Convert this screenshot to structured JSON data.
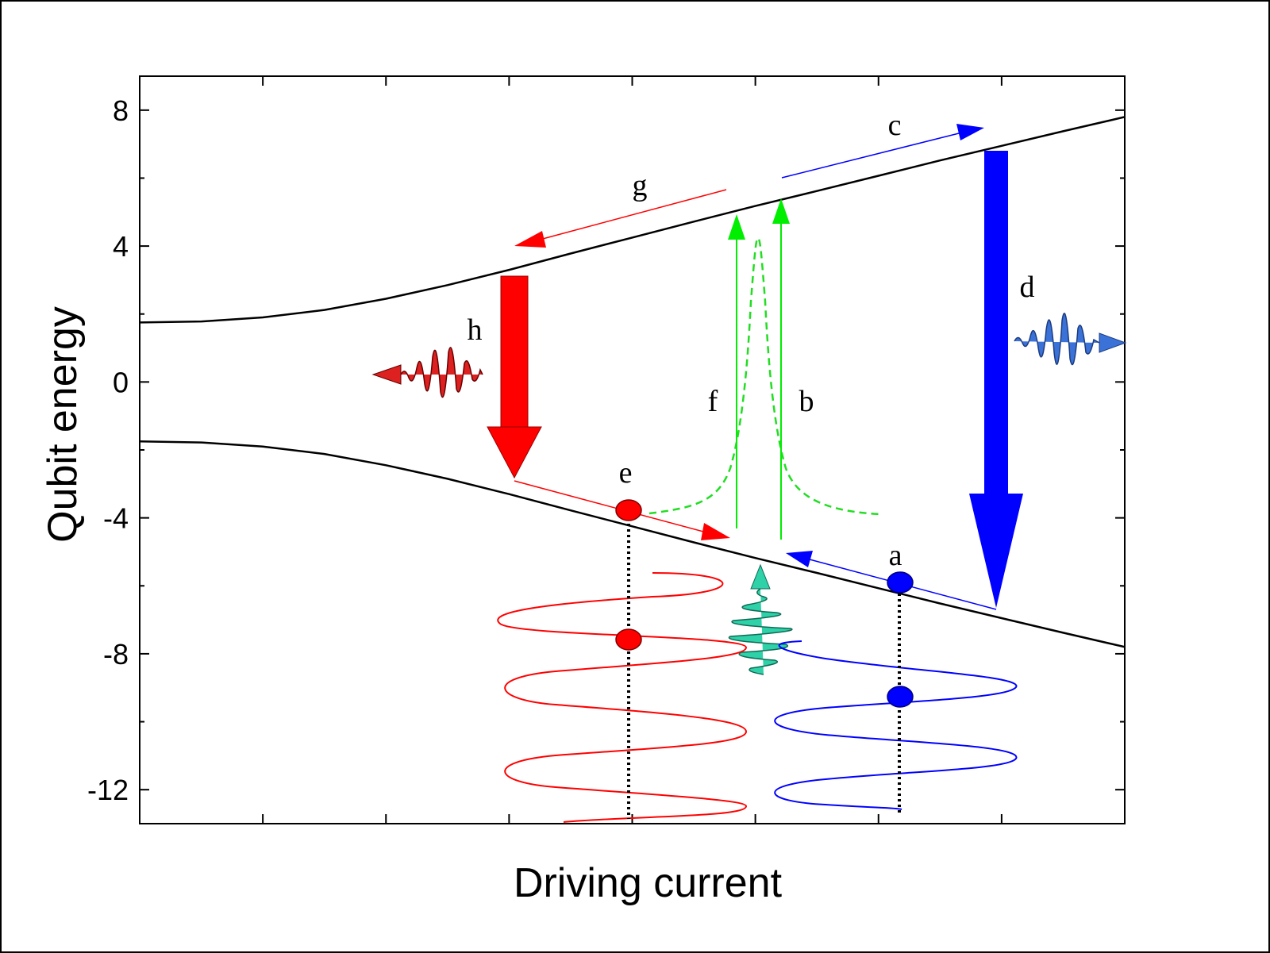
{
  "chart_data": {
    "type": "line",
    "title": "",
    "xlabel": "Driving current",
    "ylabel": "Qubit energy",
    "xlim": [
      -5,
      3
    ],
    "ylim": [
      -13,
      9
    ],
    "yticks": [
      "8",
      "4",
      "0",
      "-4",
      "-8",
      "-12"
    ],
    "ytick_values": [
      8,
      4,
      0,
      -4,
      -8,
      -12
    ],
    "xtick_values": [
      -4,
      -3,
      -2,
      -1,
      0,
      1,
      2
    ],
    "grid": false,
    "series": [
      {
        "name": "",
        "role": "upper-level",
        "x": [
          -5,
          -4.5,
          -4,
          -3.5,
          -3,
          -2.5,
          -2,
          -1.5,
          -1,
          -0.5,
          0,
          0.5,
          1,
          1.5,
          2,
          2.5,
          3
        ],
        "values": [
          1.75,
          1.78,
          1.9,
          2.12,
          2.45,
          2.85,
          3.3,
          3.78,
          4.25,
          4.72,
          5.18,
          5.62,
          6.07,
          6.52,
          6.95,
          7.38,
          7.8
        ]
      },
      {
        "name": "",
        "role": "lower-level",
        "x": [
          -5,
          -4.5,
          -4,
          -3.5,
          -3,
          -2.5,
          -2,
          -1.5,
          -1,
          -0.5,
          0,
          0.5,
          1,
          1.5,
          2,
          2.5,
          3
        ],
        "values": [
          -1.75,
          -1.78,
          -1.9,
          -2.12,
          -2.45,
          -2.85,
          -3.3,
          -3.78,
          -4.25,
          -4.72,
          -5.18,
          -5.62,
          -6.07,
          -6.52,
          -6.95,
          -7.38,
          -7.8
        ]
      }
    ],
    "annotations": [
      {
        "label": "a",
        "x": 1.15,
        "y": -5.1
      },
      {
        "label": "b",
        "x": 0.38,
        "y": -0.5
      },
      {
        "label": "c",
        "x": 1.1,
        "y": 7.8
      },
      {
        "label": "d",
        "x": 2.2,
        "y": 2.9
      },
      {
        "label": "e",
        "x": -1.08,
        "y": -2.65
      },
      {
        "label": "f",
        "x": -0.4,
        "y": -0.5
      },
      {
        "label": "g",
        "x": -0.98,
        "y": 5.6
      },
      {
        "label": "h",
        "x": -2.35,
        "y": 1.45
      }
    ],
    "colors": {
      "axis": "#000000",
      "level": "#000000",
      "blue": "#0000ff",
      "blue_packet": "#3a72d8",
      "red": "#ff0000",
      "green": "#00ee00",
      "dashed": "#22dd22",
      "teal_packet": "#2ed1a8"
    }
  }
}
